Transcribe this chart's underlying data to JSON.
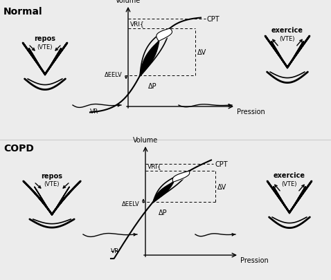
{
  "fig_width": 4.78,
  "fig_height": 4.06,
  "bg_color": "#ececec",
  "normal_label": "Normal",
  "copd_label": "COPD",
  "volume_label": "Volume",
  "pression_label": "Pression",
  "cpt_label": "CPT",
  "vri_label": "VRI{",
  "delta_v_label": "ΔV",
  "delta_p_label": "ΔP",
  "delta_eelv_label": "ΔEELV",
  "vr_label": "VR",
  "repos_label": "repos",
  "vte_label": "(VTE)",
  "exercice_label": "exercice",
  "exercice_vte_label": "(VTE)"
}
